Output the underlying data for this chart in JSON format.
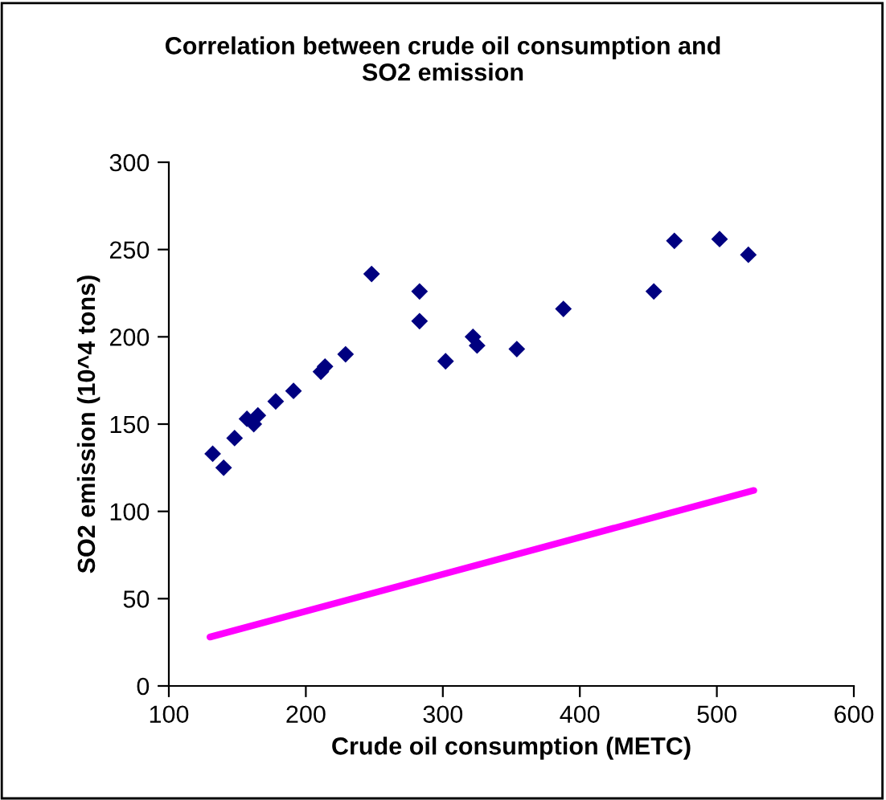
{
  "chart_data": {
    "type": "scatter",
    "title": "Correlation between crude oil consumption and\nSO2 emission",
    "xlabel": "Crude oil consumption (METC)",
    "ylabel": "SO2 emission (10^4 tons)",
    "xlim": [
      100,
      600
    ],
    "xticks": [
      100,
      200,
      300,
      400,
      500,
      600
    ],
    "ylim": [
      0,
      300
    ],
    "yticks": [
      0,
      50,
      100,
      150,
      200,
      250,
      300
    ],
    "grid": false,
    "legend": false,
    "series": [
      {
        "color": "#000080",
        "marker": "diamond",
        "x": [
          132,
          140,
          148,
          157,
          162,
          165,
          178,
          191,
          211,
          214,
          229,
          248,
          283,
          283,
          302,
          322,
          325,
          354,
          388,
          454,
          469,
          502,
          523
        ],
        "values": [
          133,
          125,
          142,
          153,
          150,
          155,
          163,
          169,
          180,
          183,
          190,
          236,
          226,
          209,
          186,
          200,
          195,
          193,
          216,
          226,
          255,
          256,
          247
        ]
      },
      {
        "type": "line",
        "color": "#ff00ff",
        "marker": "none",
        "line_style": "solid",
        "x": [
          130,
          527
        ],
        "values": [
          28,
          112
        ]
      }
    ]
  }
}
